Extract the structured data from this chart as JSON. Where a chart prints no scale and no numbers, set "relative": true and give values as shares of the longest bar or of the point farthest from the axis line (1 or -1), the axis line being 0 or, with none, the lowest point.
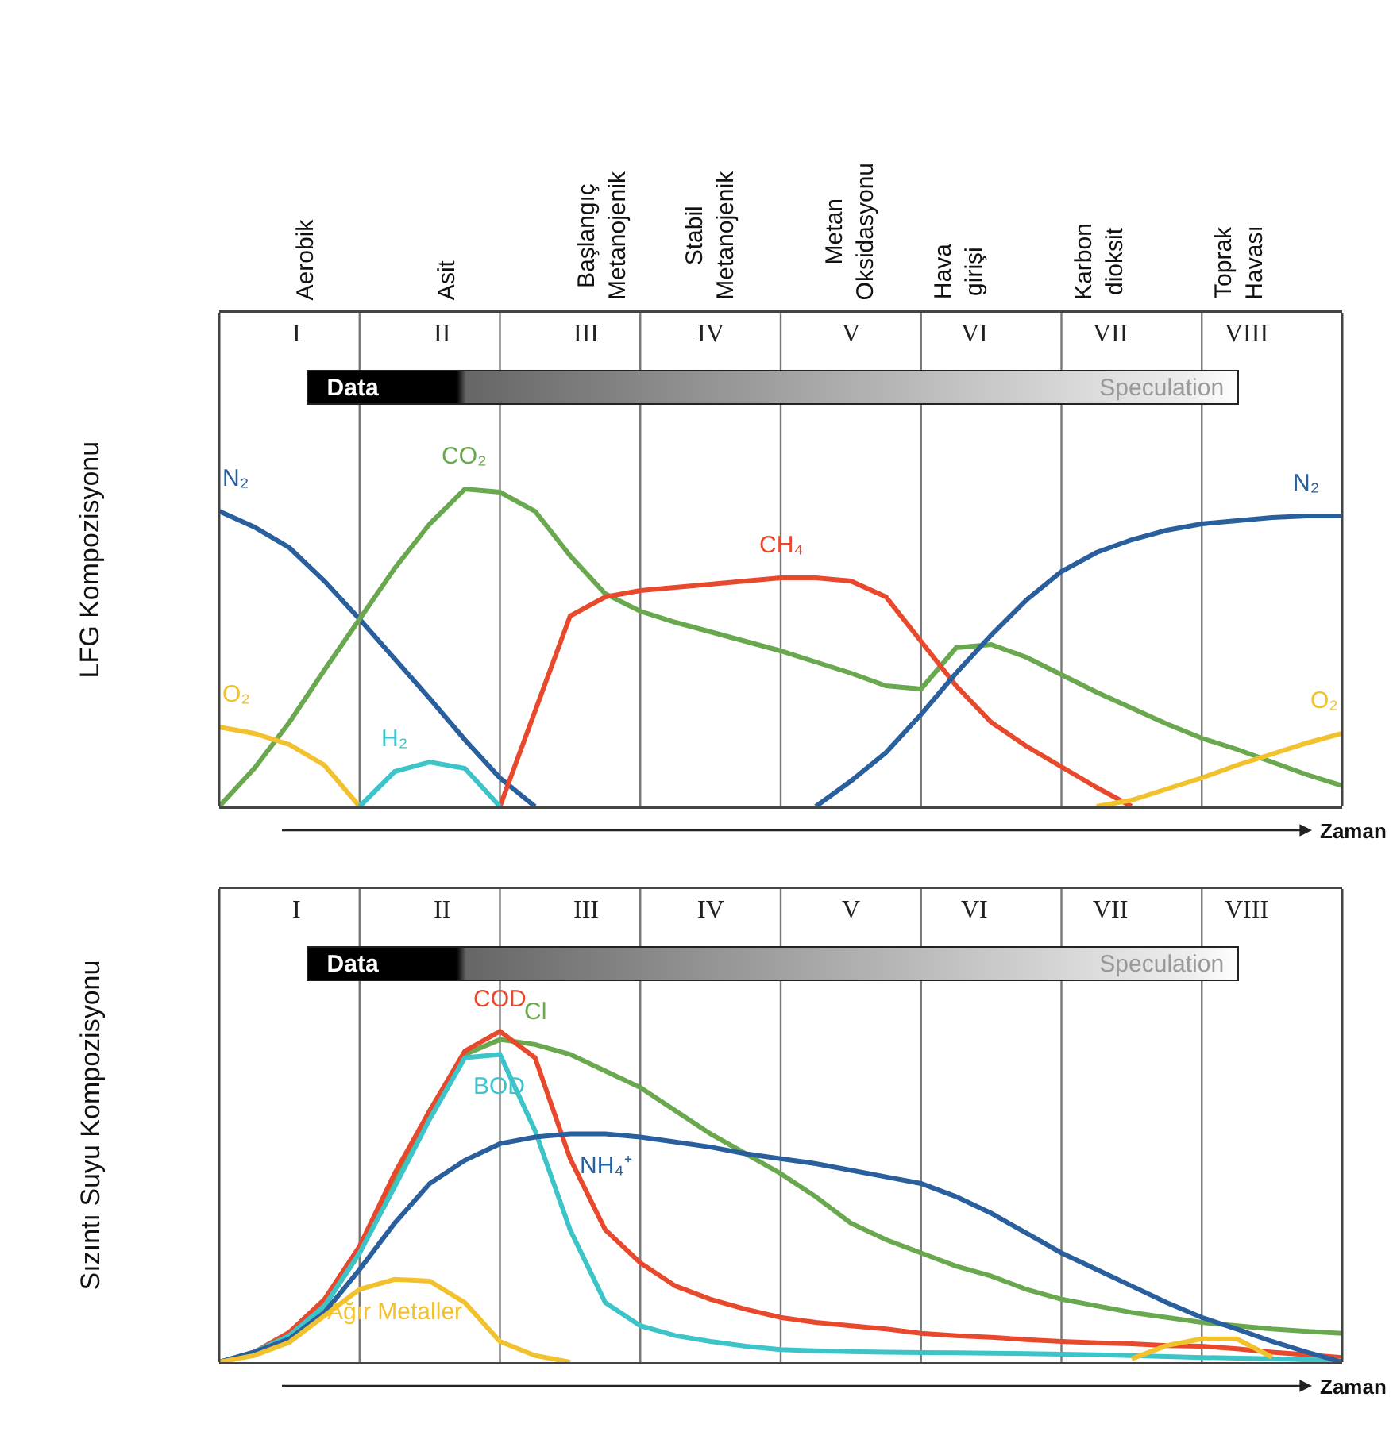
{
  "chart_data": [
    {
      "type": "line",
      "relative": true,
      "grid": "x",
      "ylabel": "LFG Kompozisyonu",
      "xlabel": "Zaman",
      "categories": [
        null,
        null,
        null,
        null,
        null,
        null,
        null,
        null,
        null,
        null,
        null,
        null,
        null,
        null,
        null,
        null,
        null,
        null,
        null,
        null,
        null,
        null,
        null,
        null,
        null,
        null,
        null,
        null,
        null,
        null,
        null,
        null,
        null
      ],
      "annotations": [
        "I",
        "II",
        "III",
        "IV",
        "V",
        "VI",
        "VII",
        "VIII",
        "Aerobik",
        "Asit",
        "Başlangıç\nMetanojenik",
        "Stabil\nMetanojenik",
        "Metan\nOksidasyonu",
        "Hava\ngirişi",
        "Karbon\ndioksit",
        "Toprak\nHavası",
        "Data",
        "Speculation"
      ],
      "series": [
        {
          "name": "N₂",
          "color": "#2a5f9e",
          "values": [
            0.93,
            0.88,
            0.815,
            0.71,
            0.59,
            0.465,
            0.34,
            0.21,
            0.09,
            0,
            null,
            null,
            null,
            null,
            null,
            null,
            null,
            null,
            null,
            null,
            null,
            null,
            null,
            null,
            null,
            null,
            null,
            null,
            null,
            null,
            null,
            null,
            null
          ]
        },
        {
          "name": "CO₂",
          "color": "#6aa84f",
          "values": [
            0,
            0.12,
            0.265,
            0.43,
            0.59,
            0.75,
            0.89,
            1,
            0.99,
            0.93,
            0.79,
            0.67,
            0.615,
            0.58,
            0.55,
            0.52,
            0.49,
            0.455,
            0.42,
            0.38,
            0.37,
            0.5,
            0.51,
            0.47,
            0.415,
            0.36,
            0.31,
            0.26,
            0.215,
            0.18,
            0.14,
            0.1,
            0.065
          ]
        },
        {
          "name": "CH₄",
          "color": "#e8482c",
          "values": [
            null,
            null,
            null,
            null,
            null,
            null,
            null,
            null,
            0,
            0.3,
            0.6,
            0.66,
            0.68,
            0.69,
            0.7,
            0.71,
            0.72,
            0.72,
            0.71,
            0.66,
            0.52,
            0.38,
            0.265,
            0.19,
            0.125,
            0.06,
            0,
            null,
            null,
            null,
            null,
            null,
            null
          ]
        },
        {
          "name": "N₂",
          "color": "#2a5f9e",
          "values": [
            null,
            null,
            null,
            null,
            null,
            null,
            null,
            null,
            null,
            null,
            null,
            null,
            null,
            null,
            null,
            null,
            null,
            0,
            0.08,
            0.17,
            0.29,
            0.42,
            0.54,
            0.65,
            0.74,
            0.8,
            0.84,
            0.87,
            0.89,
            0.9,
            0.91,
            0.915,
            0.915
          ]
        },
        {
          "name": "O₂",
          "color": "#f2c12e",
          "values": [
            0.25,
            0.23,
            0.195,
            0.13,
            0,
            null,
            null,
            null,
            null,
            null,
            null,
            null,
            null,
            null,
            null,
            null,
            null,
            null,
            null,
            null,
            null,
            null,
            null,
            null,
            null,
            null,
            null,
            null,
            null,
            null,
            null,
            null,
            null
          ]
        },
        {
          "name": "O₂",
          "color": "#f2c12e",
          "values": [
            null,
            null,
            null,
            null,
            null,
            null,
            null,
            null,
            null,
            null,
            null,
            null,
            null,
            null,
            null,
            null,
            null,
            null,
            null,
            null,
            null,
            null,
            null,
            null,
            null,
            0,
            0.02,
            0.055,
            0.09,
            0.13,
            0.165,
            0.2,
            0.23
          ]
        },
        {
          "name": "H₂",
          "color": "#3cc4c8",
          "values": [
            null,
            null,
            null,
            null,
            0,
            0.11,
            0.14,
            0.12,
            0,
            null,
            null,
            null,
            null,
            null,
            null,
            null,
            null,
            null,
            null,
            null,
            null,
            null,
            null,
            null,
            null,
            null,
            null,
            null,
            null,
            null,
            null,
            null,
            null
          ]
        }
      ]
    },
    {
      "type": "line",
      "relative": true,
      "grid": "x",
      "ylabel": "Sızıntı Suyu Kompozisyonu",
      "xlabel": "Zaman",
      "categories": [
        null,
        null,
        null,
        null,
        null,
        null,
        null,
        null,
        null,
        null,
        null,
        null,
        null,
        null,
        null,
        null,
        null,
        null,
        null,
        null,
        null,
        null,
        null,
        null,
        null,
        null,
        null,
        null,
        null,
        null,
        null,
        null,
        null
      ],
      "annotations": [
        "I",
        "II",
        "III",
        "IV",
        "V",
        "VI",
        "VII",
        "VIII",
        "Data",
        "Speculation"
      ],
      "series": [
        {
          "name": "Cl",
          "color": "#6aa84f",
          "values": [
            0,
            0.03,
            0.08,
            0.17,
            0.33,
            0.55,
            0.76,
            0.93,
            0.975,
            0.96,
            0.93,
            0.88,
            0.83,
            0.76,
            0.69,
            0.63,
            0.57,
            0.5,
            0.42,
            0.37,
            0.33,
            0.29,
            0.26,
            0.22,
            0.19,
            0.17,
            0.15,
            0.135,
            0.12,
            0.11,
            0.1,
            0.093,
            0.087
          ]
        },
        {
          "name": "COD",
          "color": "#e8482c",
          "values": [
            0,
            0.03,
            0.09,
            0.19,
            0.35,
            0.57,
            0.76,
            0.94,
            1,
            0.92,
            0.615,
            0.4,
            0.3,
            0.23,
            0.19,
            0.16,
            0.135,
            0.12,
            0.11,
            0.1,
            0.087,
            0.08,
            0.075,
            0.068,
            0.0625,
            0.058,
            0.055,
            0.05,
            0.048,
            0.04,
            0.03,
            0.022,
            0.014
          ]
        },
        {
          "name": "BOD",
          "color": "#3cc4c8",
          "values": [
            0,
            0.03,
            0.08,
            0.17,
            0.33,
            0.53,
            0.735,
            0.92,
            0.93,
            0.7,
            0.4,
            0.18,
            0.11,
            0.08,
            0.0625,
            0.048,
            0.038,
            0.034,
            0.032,
            0.03,
            0.029,
            0.028,
            0.027,
            0.026,
            0.024,
            0.022,
            0.02,
            0.017,
            0.014,
            0.012,
            0.01,
            0.007,
            0.005
          ]
        },
        {
          "name": "NH₄⁺",
          "color": "#2a5f9e",
          "values": [
            0,
            0.03,
            0.07,
            0.15,
            0.28,
            0.42,
            0.54,
            0.61,
            0.66,
            0.68,
            0.69,
            0.69,
            0.68,
            0.665,
            0.65,
            0.63,
            0.615,
            0.6,
            0.58,
            0.56,
            0.54,
            0.5,
            0.45,
            0.39,
            0.33,
            0.28,
            0.23,
            0.18,
            0.135,
            0.1,
            0.0625,
            0.03,
            0
          ]
        },
        {
          "name": "Ağır Metaller",
          "color": "#f2c12e",
          "values": [
            0,
            0.02,
            0.06,
            0.14,
            0.22,
            0.25,
            0.245,
            0.18,
            0.0625,
            0.02,
            0,
            null,
            null,
            null,
            null,
            null,
            null,
            null,
            null,
            null,
            null,
            null,
            null,
            null,
            null,
            null,
            null,
            null,
            null,
            null,
            null,
            null,
            null
          ]
        },
        {
          "color": "#f2c12e",
          "values": [
            null,
            null,
            null,
            null,
            null,
            null,
            null,
            null,
            null,
            null,
            null,
            null,
            null,
            null,
            null,
            null,
            null,
            null,
            null,
            null,
            null,
            null,
            null,
            null,
            null,
            null,
            0.01,
            0.05,
            0.07,
            0.07,
            0.015,
            null,
            null
          ]
        }
      ]
    }
  ]
}
